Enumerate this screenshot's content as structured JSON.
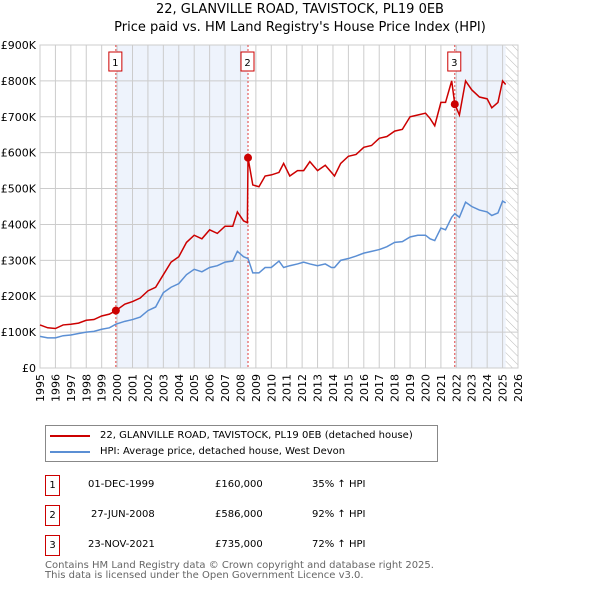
{
  "title": "22, GLANVILLE ROAD, TAVISTOCK, PL19 0EB",
  "subtitle": "Price paid vs. HM Land Registry's House Price Index (HPI)",
  "chart_data": {
    "type": "line",
    "title": "22, GLANVILLE ROAD, TAVISTOCK, PL19 0EB",
    "xlim": [
      1995,
      2026
    ],
    "ylim": [
      0,
      900000
    ],
    "y_ticks": [
      {
        "v": 0,
        "label": "£0"
      },
      {
        "v": 100000,
        "label": "£100K"
      },
      {
        "v": 200000,
        "label": "£200K"
      },
      {
        "v": 300000,
        "label": "£300K"
      },
      {
        "v": 400000,
        "label": "£400K"
      },
      {
        "v": 500000,
        "label": "£500K"
      },
      {
        "v": 600000,
        "label": "£600K"
      },
      {
        "v": 700000,
        "label": "£700K"
      },
      {
        "v": 800000,
        "label": "£800K"
      },
      {
        "v": 900000,
        "label": "£900K"
      }
    ],
    "x_ticks": [
      "1995",
      "1996",
      "1997",
      "1998",
      "1999",
      "2000",
      "2001",
      "2002",
      "2003",
      "2004",
      "2005",
      "2006",
      "2007",
      "2008",
      "2009",
      "2010",
      "2011",
      "2012",
      "2013",
      "2014",
      "2015",
      "2016",
      "2017",
      "2018",
      "2019",
      "2020",
      "2021",
      "2022",
      "2023",
      "2024",
      "2025",
      "2026"
    ],
    "series": [
      {
        "name": "22, GLANVILLE ROAD, TAVISTOCK, PL19 0EB (detached house)",
        "color": "#cc0000",
        "x": [
          1995,
          1995.5,
          1996,
          1996.5,
          1997,
          1997.5,
          1998,
          1998.5,
          1999,
          1999.5,
          1999.92,
          2000.5,
          2001,
          2001.5,
          2002,
          2002.5,
          2003,
          2003.5,
          2004,
          2004.5,
          2005,
          2005.5,
          2006,
          2006.5,
          2007,
          2007.5,
          2007.8,
          2008.2,
          2008.45,
          2008.49,
          2008.8,
          2009.2,
          2009.6,
          2010,
          2010.5,
          2010.8,
          2011.2,
          2011.7,
          2012.1,
          2012.5,
          2013,
          2013.5,
          2013.9,
          2014.1,
          2014.5,
          2015,
          2015.5,
          2016,
          2016.5,
          2017,
          2017.5,
          2018,
          2018.5,
          2019,
          2019.5,
          2020,
          2020.3,
          2020.6,
          2021,
          2021.3,
          2021.7,
          2021.9,
          2022.2,
          2022.6,
          2023,
          2023.5,
          2024,
          2024.3,
          2024.7,
          2025,
          2025.2
        ],
        "y": [
          120000,
          112000,
          110000,
          120000,
          122000,
          125000,
          133000,
          135000,
          145000,
          150000,
          160000,
          178000,
          185000,
          195000,
          215000,
          225000,
          260000,
          295000,
          310000,
          350000,
          370000,
          360000,
          385000,
          375000,
          395000,
          395000,
          435000,
          410000,
          405000,
          586000,
          510000,
          505000,
          535000,
          538000,
          545000,
          570000,
          535000,
          550000,
          550000,
          575000,
          550000,
          565000,
          545000,
          535000,
          570000,
          590000,
          595000,
          615000,
          620000,
          640000,
          645000,
          660000,
          665000,
          700000,
          705000,
          710000,
          695000,
          675000,
          740000,
          740000,
          800000,
          735000,
          705000,
          800000,
          775000,
          755000,
          750000,
          725000,
          740000,
          800000,
          790000
        ]
      },
      {
        "name": "HPI: Average price, detached house, West Devon",
        "color": "#5b8fd4",
        "x": [
          1995,
          1995.5,
          1996,
          1996.5,
          1997,
          1997.5,
          1998,
          1998.5,
          1999,
          1999.5,
          1999.92,
          2000.5,
          2001,
          2001.5,
          2002,
          2002.5,
          2003,
          2003.5,
          2004,
          2004.5,
          2005,
          2005.5,
          2006,
          2006.5,
          2007,
          2007.5,
          2007.8,
          2008.2,
          2008.49,
          2008.8,
          2009.2,
          2009.6,
          2010,
          2010.5,
          2010.8,
          2011.2,
          2011.7,
          2012.1,
          2012.5,
          2013,
          2013.5,
          2013.9,
          2014.1,
          2014.5,
          2015,
          2015.5,
          2016,
          2016.5,
          2017,
          2017.5,
          2018,
          2018.5,
          2019,
          2019.5,
          2020,
          2020.3,
          2020.6,
          2021,
          2021.3,
          2021.7,
          2021.9,
          2022.2,
          2022.6,
          2023,
          2023.5,
          2024,
          2024.3,
          2024.7,
          2025,
          2025.2
        ],
        "y": [
          88000,
          84000,
          84000,
          90000,
          92000,
          96000,
          100000,
          102000,
          108000,
          112000,
          122000,
          130000,
          135000,
          142000,
          160000,
          170000,
          210000,
          225000,
          235000,
          260000,
          275000,
          268000,
          280000,
          285000,
          295000,
          298000,
          325000,
          310000,
          305000,
          265000,
          265000,
          280000,
          280000,
          298000,
          280000,
          285000,
          290000,
          295000,
          290000,
          285000,
          290000,
          280000,
          280000,
          300000,
          305000,
          312000,
          320000,
          325000,
          330000,
          338000,
          350000,
          352000,
          365000,
          370000,
          370000,
          360000,
          355000,
          390000,
          385000,
          420000,
          430000,
          420000,
          462000,
          450000,
          440000,
          435000,
          425000,
          432000,
          465000,
          460000
        ]
      }
    ],
    "sales": [
      {
        "n": "1",
        "x": 1999.92,
        "y": 160000
      },
      {
        "n": "2",
        "x": 2008.49,
        "y": 586000
      },
      {
        "n": "3",
        "x": 2021.9,
        "y": 735000
      }
    ],
    "shaded_ranges": [
      [
        1999.92,
        2008.49
      ],
      [
        2021.9,
        2025.2
      ]
    ],
    "forecast_hatch_from": 2025.2,
    "grid": true
  },
  "legend": [
    {
      "label": "22, GLANVILLE ROAD, TAVISTOCK, PL19 0EB (detached house)",
      "color": "#cc0000"
    },
    {
      "label": "HPI: Average price, detached house, West Devon",
      "color": "#5b8fd4"
    }
  ],
  "transactions": [
    {
      "n": "1",
      "date": "01-DEC-1999",
      "price": "£160,000",
      "hpi": "35% ↑ HPI"
    },
    {
      "n": "2",
      "date": "27-JUN-2008",
      "price": "£586,000",
      "hpi": "92% ↑ HPI"
    },
    {
      "n": "3",
      "date": "23-NOV-2021",
      "price": "£735,000",
      "hpi": "72% ↑ HPI"
    }
  ],
  "footer": [
    "Contains HM Land Registry data © Crown copyright and database right 2025.",
    "This data is licensed under the Open Government Licence v3.0."
  ]
}
